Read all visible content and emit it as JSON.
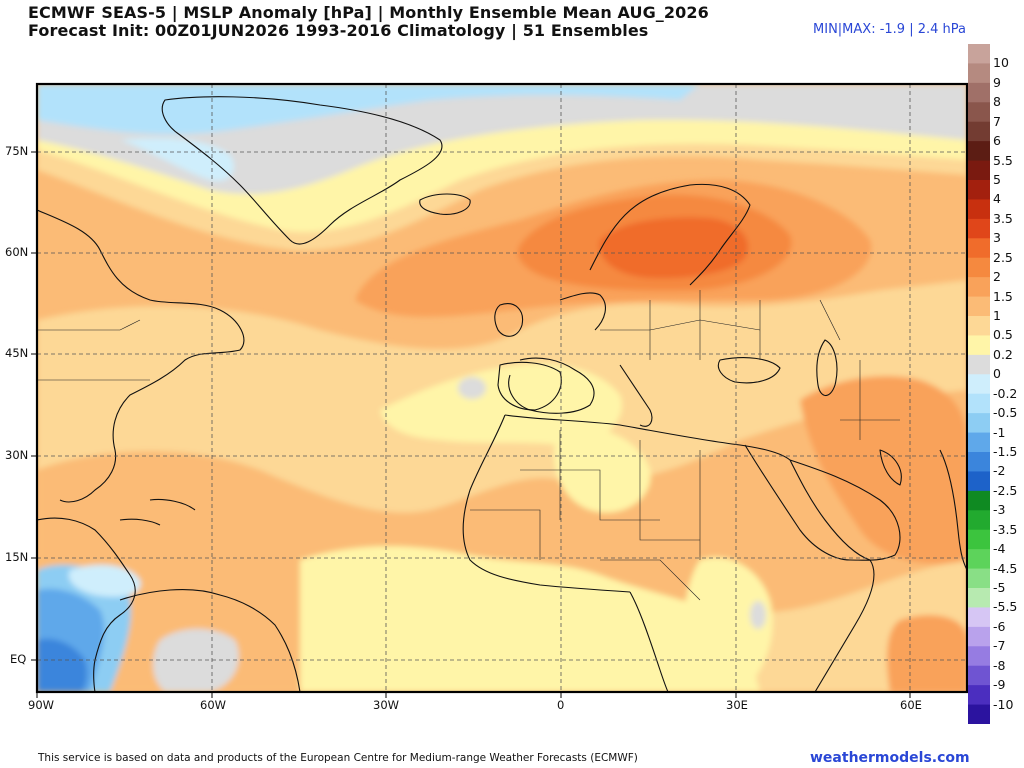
{
  "header": {
    "title_line1": "ECMWF SEAS-5 | MSLP Anomaly [hPa] | Monthly Ensemble Mean AUG_2026",
    "title_line2": "Forecast Init: 00Z01JUN2026    1993-2016 Climatology | 51 Ensembles",
    "minmax": "MIN|MAX: -1.9 | 2.4 hPa"
  },
  "colors": {
    "land_border": "#111111",
    "grid": "#555555",
    "brand": "#2a47d6"
  },
  "map": {
    "lat_labels": [
      "75N",
      "60N",
      "45N",
      "30N",
      "15N",
      "EQ"
    ],
    "lon_labels": [
      "90W",
      "60W",
      "30W",
      "0",
      "30E",
      "60E"
    ],
    "extent": {
      "lon_min": -90,
      "lon_max": 70,
      "lat_min": -5,
      "lat_max": 85
    },
    "gridlines": "dashed every 15 degrees",
    "anomaly_regions": [
      {
        "region": "Arctic / Baffin Bay / Greenland Sea",
        "range": "-0.5 to 0"
      },
      {
        "region": "Greenland interior",
        "range": "0"
      },
      {
        "region": "North Atlantic mid-latitudes",
        "range": "1 to 1.5"
      },
      {
        "region": "Scandinavia and Baltic",
        "range": "2 to 2.5"
      },
      {
        "region": "Iberia and western Mediterranean",
        "range": "0.2 to 0.5"
      },
      {
        "region": "North Africa and Arabia",
        "range": "0.5 to 1.5"
      },
      {
        "region": "Eastern Pacific off Central America",
        "range": "-1.5 to -2"
      },
      {
        "region": "Amazon basin",
        "range": "0"
      },
      {
        "region": "Gulf of Guinea / Sahel",
        "range": "0.2 to 0.5"
      }
    ]
  },
  "colorbar": {
    "labels": [
      "10",
      "9",
      "8",
      "7",
      "6",
      "5.5",
      "5",
      "4",
      "3.5",
      "3",
      "2.5",
      "2",
      "1.5",
      "1",
      "0.5",
      "0.2",
      "0",
      "-0.2",
      "-0.5",
      "-1",
      "-1.5",
      "-2",
      "-2.5",
      "-3",
      "-3.5",
      "-4",
      "-4.5",
      "-5",
      "-5.5",
      "-6",
      "-7",
      "-8",
      "-9",
      "-10"
    ],
    "colors": [
      "#c8a39b",
      "#b58a80",
      "#a07068",
      "#8a564c",
      "#733c32",
      "#5c1d14",
      "#7a1a10",
      "#a3200e",
      "#c8300f",
      "#e0461a",
      "#f06c2b",
      "#f5893f",
      "#f9a25a",
      "#fbbb76",
      "#fdd896",
      "#fff5a8",
      "#dcdcdc",
      "#cfeefc",
      "#b2e2fb",
      "#8dcdf3",
      "#5fa8ea",
      "#3b85dc",
      "#1d62c9",
      "#0f8a22",
      "#22aa2f",
      "#3cc43e",
      "#5dd35b",
      "#89df86",
      "#b7eab0",
      "#d6c6f4",
      "#b9a2ec",
      "#967ce2",
      "#6f54d2",
      "#4b2ebf",
      "#2b139f"
    ]
  },
  "footer": {
    "attribution": "This service is based on data and products of the European Centre for Medium-range Weather Forecasts (ECMWF)",
    "brand": "weathermodels.com"
  }
}
